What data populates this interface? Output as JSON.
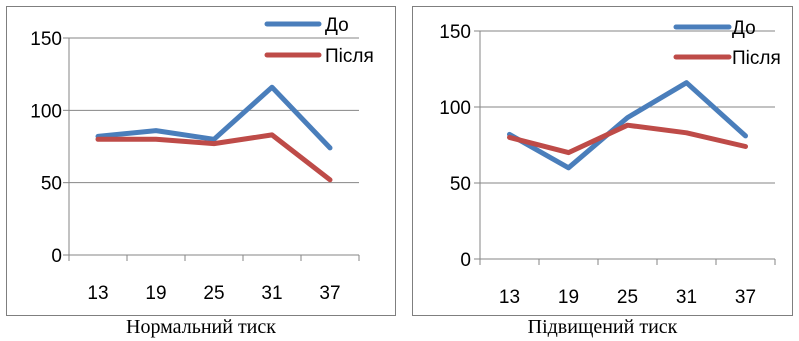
{
  "chart_data": [
    {
      "type": "line",
      "title": "",
      "caption": "Нормальний тиск",
      "categories": [
        "13",
        "19",
        "25",
        "31",
        "37"
      ],
      "yticks": [
        "0",
        "50",
        "100",
        "150"
      ],
      "ylim": [
        0,
        150
      ],
      "grid": true,
      "legend_position": "top-right",
      "series": [
        {
          "name": "До",
          "color": "#4a7ebb",
          "values": [
            82,
            86,
            80,
            116,
            74
          ]
        },
        {
          "name": "Після",
          "color": "#be4b48",
          "values": [
            80,
            80,
            77,
            83,
            52
          ]
        }
      ]
    },
    {
      "type": "line",
      "title": "",
      "caption": "Підвищений тиск",
      "categories": [
        "13",
        "19",
        "25",
        "31",
        "37"
      ],
      "yticks": [
        "0",
        "50",
        "100",
        "150"
      ],
      "ylim": [
        0,
        150
      ],
      "grid": true,
      "legend_position": "top-right",
      "series": [
        {
          "name": "До",
          "color": "#4a7ebb",
          "values": [
            82,
            60,
            93,
            116,
            81
          ]
        },
        {
          "name": "Після",
          "color": "#be4b48",
          "values": [
            80,
            70,
            88,
            83,
            74
          ]
        }
      ]
    }
  ]
}
